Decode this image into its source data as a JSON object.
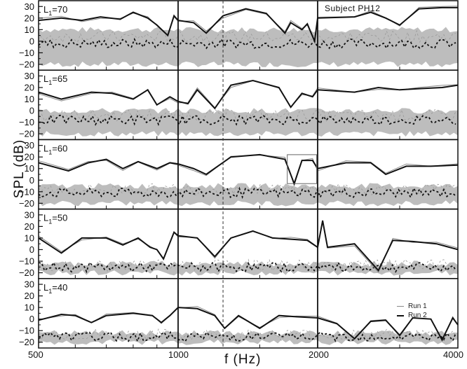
{
  "chart_data": {
    "type": "line",
    "title": "Subject PH12",
    "xlabel": "f (Hz)",
    "ylabel": "SPL (dB)",
    "x_scale": "log (piecewise, 3 octave-like segments)",
    "x_segments": [
      [
        500,
        1000
      ],
      [
        1000,
        2000
      ],
      [
        2000,
        4000
      ]
    ],
    "x_ticks": [
      "500",
      "1000",
      "2000",
      "4000"
    ],
    "y_ticks": [
      30,
      20,
      10,
      0,
      -10,
      -20
    ],
    "ylim": [
      -25,
      35
    ],
    "dashed_reference_frequency_hz": 1250,
    "legend": [
      {
        "name": "Run 1",
        "style": "thin gray line"
      },
      {
        "name": "Run 2",
        "style": "thick black line"
      }
    ],
    "series_description": {
      "solid": "DPOAE level (Run 1 thin gray, Run 2 thick black)",
      "dashed": "Noise floor (dashed, Run 1 gray / Run 2 black)",
      "shaded": "Gray band: normative noise range"
    },
    "panels": [
      {
        "label": "L1=70",
        "level": 70,
        "run2_main": [
          [
            500,
            18
          ],
          [
            560,
            20
          ],
          [
            620,
            18
          ],
          [
            680,
            21
          ],
          [
            750,
            19
          ],
          [
            800,
            25
          ],
          [
            860,
            20
          ],
          [
            900,
            14
          ],
          [
            950,
            5
          ],
          [
            980,
            22
          ],
          [
            1000,
            18
          ],
          [
            1080,
            16
          ],
          [
            1150,
            7
          ],
          [
            1250,
            22
          ],
          [
            1400,
            28
          ],
          [
            1550,
            24
          ],
          [
            1700,
            7
          ],
          [
            1750,
            16
          ],
          [
            1850,
            10
          ],
          [
            1900,
            15
          ],
          [
            1970,
            0
          ],
          [
            2000,
            20
          ],
          [
            2400,
            21
          ],
          [
            2600,
            25
          ],
          [
            2800,
            20
          ],
          [
            3000,
            14
          ],
          [
            3300,
            28
          ],
          [
            3700,
            29
          ],
          [
            4000,
            29
          ]
        ],
        "noise_band": [
          -20,
          10
        ]
      },
      {
        "label": "L1=65",
        "level": 65,
        "run2_main": [
          [
            500,
            16
          ],
          [
            560,
            10
          ],
          [
            650,
            16
          ],
          [
            720,
            15
          ],
          [
            800,
            10
          ],
          [
            860,
            18
          ],
          [
            900,
            5
          ],
          [
            960,
            12
          ],
          [
            1000,
            8
          ],
          [
            1050,
            6
          ],
          [
            1100,
            18
          ],
          [
            1200,
            2
          ],
          [
            1300,
            22
          ],
          [
            1450,
            26
          ],
          [
            1650,
            20
          ],
          [
            1750,
            3
          ],
          [
            1850,
            15
          ],
          [
            1950,
            12
          ],
          [
            2000,
            18
          ],
          [
            2400,
            16
          ],
          [
            2700,
            20
          ],
          [
            3000,
            18
          ],
          [
            3300,
            19
          ],
          [
            3700,
            20
          ],
          [
            4000,
            22
          ]
        ],
        "noise_band": [
          -20,
          0
        ]
      },
      {
        "label": "L1=60",
        "level": 60,
        "run2_main": [
          [
            500,
            15
          ],
          [
            580,
            8
          ],
          [
            640,
            15
          ],
          [
            700,
            18
          ],
          [
            760,
            10
          ],
          [
            820,
            16
          ],
          [
            900,
            10
          ],
          [
            960,
            15
          ],
          [
            1000,
            14
          ],
          [
            1080,
            10
          ],
          [
            1150,
            5
          ],
          [
            1300,
            20
          ],
          [
            1500,
            22
          ],
          [
            1700,
            18
          ],
          [
            1780,
            -3
          ],
          [
            1850,
            17
          ],
          [
            1950,
            17
          ],
          [
            2000,
            10
          ],
          [
            2300,
            15
          ],
          [
            2600,
            15
          ],
          [
            2800,
            5
          ],
          [
            3100,
            12
          ],
          [
            3500,
            12
          ],
          [
            4000,
            13
          ]
        ],
        "noise_band": [
          -20,
          -5
        ],
        "annotation": "Inset rectangle marks ~1700–2000 Hz region"
      },
      {
        "label": "L1=50",
        "level": 50,
        "run2_main": [
          [
            500,
            10
          ],
          [
            560,
            -3
          ],
          [
            620,
            10
          ],
          [
            700,
            10
          ],
          [
            760,
            4
          ],
          [
            820,
            10
          ],
          [
            870,
            2
          ],
          [
            900,
            0
          ],
          [
            930,
            -8
          ],
          [
            980,
            15
          ],
          [
            1000,
            12
          ],
          [
            1100,
            10
          ],
          [
            1200,
            -6
          ],
          [
            1300,
            10
          ],
          [
            1450,
            16
          ],
          [
            1600,
            10
          ],
          [
            1750,
            9
          ],
          [
            1900,
            8
          ],
          [
            2000,
            2
          ],
          [
            2050,
            25
          ],
          [
            2100,
            2
          ],
          [
            2400,
            5
          ],
          [
            2700,
            -18
          ],
          [
            2900,
            8
          ],
          [
            3200,
            7
          ],
          [
            3600,
            5
          ],
          [
            4000,
            0
          ]
        ],
        "noise_band": [
          -20,
          -12
        ]
      },
      {
        "label": "L1=40",
        "level": 40,
        "run2_main": [
          [
            500,
            -1
          ],
          [
            560,
            4
          ],
          [
            600,
            3
          ],
          [
            650,
            -3
          ],
          [
            700,
            3
          ],
          [
            800,
            5
          ],
          [
            880,
            3
          ],
          [
            920,
            -3
          ],
          [
            960,
            3
          ],
          [
            1000,
            10
          ],
          [
            1100,
            9
          ],
          [
            1200,
            3
          ],
          [
            1260,
            -8
          ],
          [
            1350,
            3
          ],
          [
            1500,
            -8
          ],
          [
            1650,
            3
          ],
          [
            1800,
            2
          ],
          [
            2000,
            1
          ],
          [
            2200,
            -4
          ],
          [
            2400,
            -17
          ],
          [
            2600,
            -2
          ],
          [
            2800,
            -1
          ],
          [
            3000,
            -14
          ],
          [
            3200,
            1
          ],
          [
            3500,
            0
          ],
          [
            3700,
            -18
          ],
          [
            3900,
            1
          ],
          [
            4000,
            -5
          ]
        ],
        "noise_band": [
          -20,
          -12
        ]
      }
    ]
  },
  "figure": {
    "subject_label": "Subject PH12",
    "xlabel": "f  (Hz)",
    "ylabel": "SPL  (dB)",
    "x_tick_labels": [
      "500",
      "1000",
      "2000",
      "4000"
    ],
    "legend_run1": "Run 1",
    "legend_run2": "Run 2"
  }
}
